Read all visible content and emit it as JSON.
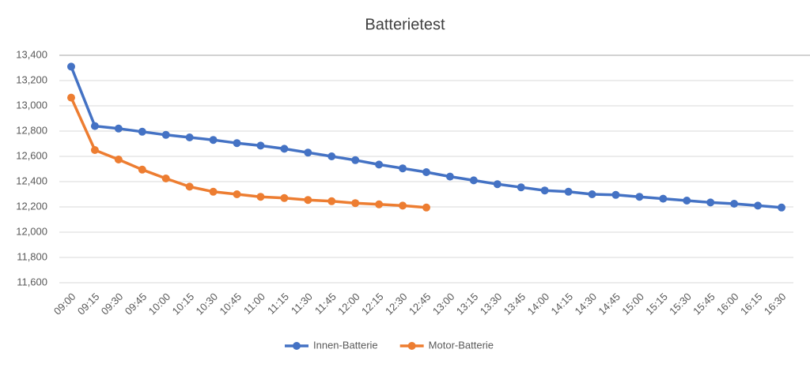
{
  "chart_data": {
    "type": "line",
    "title": "Batterietest",
    "categories": [
      "09:00",
      "09:15",
      "09:30",
      "09:45",
      "10:00",
      "10:15",
      "10:30",
      "10:45",
      "11:00",
      "11:15",
      "11:30",
      "11:45",
      "12:00",
      "12:15",
      "12:30",
      "12:45",
      "13:00",
      "13:15",
      "13:30",
      "13:45",
      "14:00",
      "14:15",
      "14:30",
      "14:45",
      "15:00",
      "15:15",
      "15:30",
      "15:45",
      "16:00",
      "16:15",
      "16:30"
    ],
    "series": [
      {
        "name": "Innen-Batterie",
        "color": "#4472c4",
        "values": [
          13310,
          12840,
          12820,
          12795,
          12770,
          12750,
          12730,
          12705,
          12685,
          12660,
          12630,
          12600,
          12570,
          12535,
          12505,
          12475,
          12440,
          12410,
          12380,
          12355,
          12330,
          12320,
          12300,
          12295,
          12280,
          12265,
          12250,
          12235,
          12225,
          12210,
          12195
        ]
      },
      {
        "name": "Motor-Batterie",
        "color": "#ed7d31",
        "values": [
          13065,
          12650,
          12575,
          12495,
          12425,
          12360,
          12320,
          12300,
          12280,
          12270,
          12255,
          12245,
          12230,
          12220,
          12210,
          12195,
          null,
          null,
          null,
          null,
          null,
          null,
          null,
          null,
          null,
          null,
          null,
          null,
          null,
          null,
          null
        ]
      }
    ],
    "ylim": [
      11600,
      13400
    ],
    "yticks": [
      {
        "value": 11600,
        "label": "11,600"
      },
      {
        "value": 11800,
        "label": "11,800"
      },
      {
        "value": 12000,
        "label": "12,000"
      },
      {
        "value": 12200,
        "label": "12,200"
      },
      {
        "value": 12400,
        "label": "12,400"
      },
      {
        "value": 12600,
        "label": "12,600"
      },
      {
        "value": 12800,
        "label": "12,800"
      },
      {
        "value": 13000,
        "label": "13,000"
      },
      {
        "value": 13200,
        "label": "13,200"
      },
      {
        "value": 13400,
        "label": "13,400"
      }
    ],
    "grid": true,
    "legend": "bottom"
  }
}
